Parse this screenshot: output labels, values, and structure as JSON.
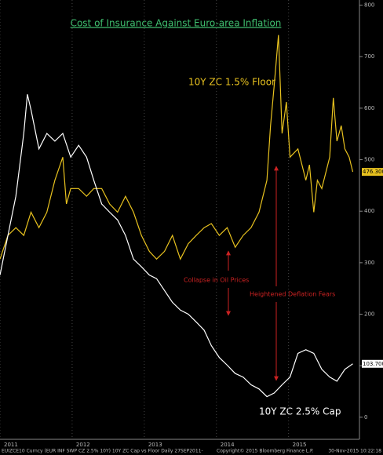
{
  "chart_data": {
    "type": "line",
    "title": "Cost of Insurance Against Euro-area Inflation",
    "annotations": [
      "Collapse in Oil Prices",
      "Heightened Deflation Fears"
    ],
    "footer": [
      "EUIZCE10 Curncy (EUR INF SWP CZ 2.5%  10Y) 10Y ZC Cap vs Floor  Daily 27SEP2011-",
      "Copyright© 2015 Bloomberg Finance L.P.",
      "30-Nov-2015 10:22:18"
    ],
    "series": [
      {
        "name": "10Y ZC 1.5% Floor",
        "color": "#e8c21f",
        "x": [
          2011.0,
          2011.11,
          2011.22,
          2011.33,
          2011.43,
          2011.54,
          2011.65,
          2011.76,
          2011.87,
          2011.92,
          2011.98,
          2012.09,
          2012.2,
          2012.3,
          2012.41,
          2012.52,
          2012.63,
          2012.74,
          2012.85,
          2012.96,
          2013.07,
          2013.17,
          2013.28,
          2013.39,
          2013.5,
          2013.61,
          2013.72,
          2013.83,
          2013.93,
          2014.04,
          2014.15,
          2014.26,
          2014.37,
          2014.48,
          2014.59,
          2014.7,
          2014.75,
          2014.8,
          2014.86,
          2014.91,
          2014.97,
          2015.02,
          2015.13,
          2015.24,
          2015.29,
          2015.35,
          2015.4,
          2015.46,
          2015.57,
          2015.62,
          2015.67,
          2015.73,
          2015.78,
          2015.84,
          2015.89
        ],
        "values": [
          307,
          353,
          368,
          353,
          398,
          368,
          398,
          460,
          505,
          414,
          444,
          444,
          429,
          444,
          444,
          414,
          398,
          429,
          398,
          353,
          322,
          307,
          322,
          353,
          307,
          337,
          353,
          368,
          376,
          353,
          368,
          330,
          353,
          368,
          398,
          460,
          566,
          643,
          742,
          551,
          612,
          505,
          521,
          460,
          490,
          398,
          460,
          444,
          505,
          620,
          536,
          566,
          521,
          505,
          476.3
        ],
        "last_label": "476.300"
      },
      {
        "name": "10Y ZC 2.5% Cap",
        "color": "#ffffff",
        "x": [
          2011.0,
          2011.11,
          2011.22,
          2011.33,
          2011.38,
          2011.43,
          2011.54,
          2011.65,
          2011.76,
          2011.87,
          2011.98,
          2012.09,
          2012.2,
          2012.3,
          2012.41,
          2012.52,
          2012.63,
          2012.74,
          2012.85,
          2012.96,
          2013.07,
          2013.17,
          2013.28,
          2013.39,
          2013.5,
          2013.61,
          2013.72,
          2013.83,
          2013.93,
          2014.04,
          2014.15,
          2014.26,
          2014.37,
          2014.48,
          2014.59,
          2014.7,
          2014.8,
          2014.91,
          2015.02,
          2015.13,
          2015.24,
          2015.35,
          2015.46,
          2015.57,
          2015.67,
          2015.78,
          2015.89
        ],
        "values": [
          276,
          353,
          429,
          551,
          627,
          597,
          521,
          551,
          536,
          551,
          505,
          528,
          505,
          460,
          414,
          398,
          383,
          353,
          307,
          292,
          276,
          269,
          246,
          223,
          208,
          200,
          185,
          169,
          139,
          116,
          101,
          85,
          78,
          63,
          55,
          40,
          47,
          63,
          78,
          124,
          131,
          124,
          93,
          78,
          70,
          93,
          103.7
        ],
        "last_label": "103.700"
      }
    ],
    "xlim": [
      2011,
      2015.95
    ],
    "xticks": [
      2011,
      2012,
      2013,
      2014,
      2015
    ],
    "ylim": [
      -20,
      810
    ],
    "yticks": [
      0,
      100,
      200,
      300,
      400,
      500,
      600,
      700,
      800
    ]
  }
}
